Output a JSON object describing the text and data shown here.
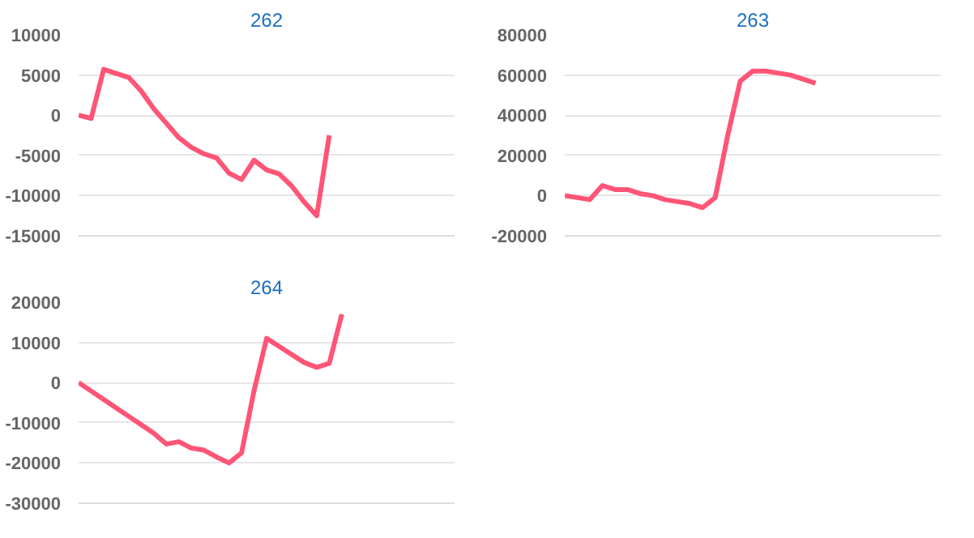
{
  "chart_data": [
    {
      "type": "line",
      "title": "262",
      "categories": [
        null,
        null,
        null,
        null,
        null,
        null,
        null,
        null,
        null,
        null,
        null,
        null,
        null,
        null,
        null,
        null,
        null,
        null,
        null,
        null,
        null,
        null,
        null,
        null,
        null,
        null,
        null,
        null,
        null,
        null,
        null
      ],
      "series": [
        {
          "color": "#ff5577",
          "values": [
            0,
            -400,
            5700,
            5200,
            4700,
            3000,
            800,
            -1000,
            -2800,
            -4000,
            -4800,
            -5300,
            -7200,
            -8000,
            -5600,
            -6800,
            -7300,
            -8800,
            -10800,
            -12500,
            -2500,
            null,
            null,
            null,
            null,
            null,
            null,
            null,
            null,
            null,
            null
          ]
        }
      ],
      "ylim": [
        -15000,
        10000
      ],
      "yticks": [
        -15000,
        -10000,
        -5000,
        0,
        5000,
        10000
      ],
      "grid": "y",
      "tick_labels": "y"
    },
    {
      "type": "line",
      "title": "263",
      "categories": [
        null,
        null,
        null,
        null,
        null,
        null,
        null,
        null,
        null,
        null,
        null,
        null,
        null,
        null,
        null,
        null,
        null,
        null,
        null,
        null,
        null,
        null,
        null,
        null,
        null,
        null,
        null,
        null,
        null,
        null,
        null
      ],
      "series": [
        {
          "color": "#ff5577",
          "values": [
            0,
            -1000,
            -2000,
            5000,
            3000,
            3000,
            1000,
            0,
            -2000,
            -3000,
            -4000,
            -6000,
            -1000,
            30000,
            57000,
            62000,
            62000,
            61000,
            60000,
            58000,
            56000,
            null,
            null,
            null,
            null,
            null,
            null,
            null,
            null,
            null,
            null
          ]
        }
      ],
      "ylim": [
        -20000,
        80000
      ],
      "yticks": [
        -20000,
        0,
        20000,
        40000,
        60000,
        80000
      ],
      "grid": "y",
      "tick_labels": "y"
    },
    {
      "type": "line",
      "title": "264",
      "categories": [
        null,
        null,
        null,
        null,
        null,
        null,
        null,
        null,
        null,
        null,
        null,
        null,
        null,
        null,
        null,
        null,
        null,
        null,
        null,
        null,
        null,
        null,
        null,
        null,
        null,
        null,
        null,
        null,
        null,
        null,
        null
      ],
      "series": [
        {
          "color": "#ff5577",
          "values": [
            0,
            -2100,
            -4200,
            -6300,
            -8400,
            -10500,
            -12600,
            -15300,
            -14700,
            -16300,
            -16800,
            -18500,
            -20000,
            -17500,
            -2000,
            11000,
            9000,
            7000,
            5000,
            3800,
            4800,
            17000,
            null,
            null,
            null,
            null,
            null,
            null,
            null,
            null,
            null
          ]
        }
      ],
      "ylim": [
        -30000,
        20000
      ],
      "yticks": [
        -30000,
        -20000,
        -10000,
        0,
        10000,
        20000
      ],
      "grid": "y",
      "tick_labels": "y"
    }
  ]
}
